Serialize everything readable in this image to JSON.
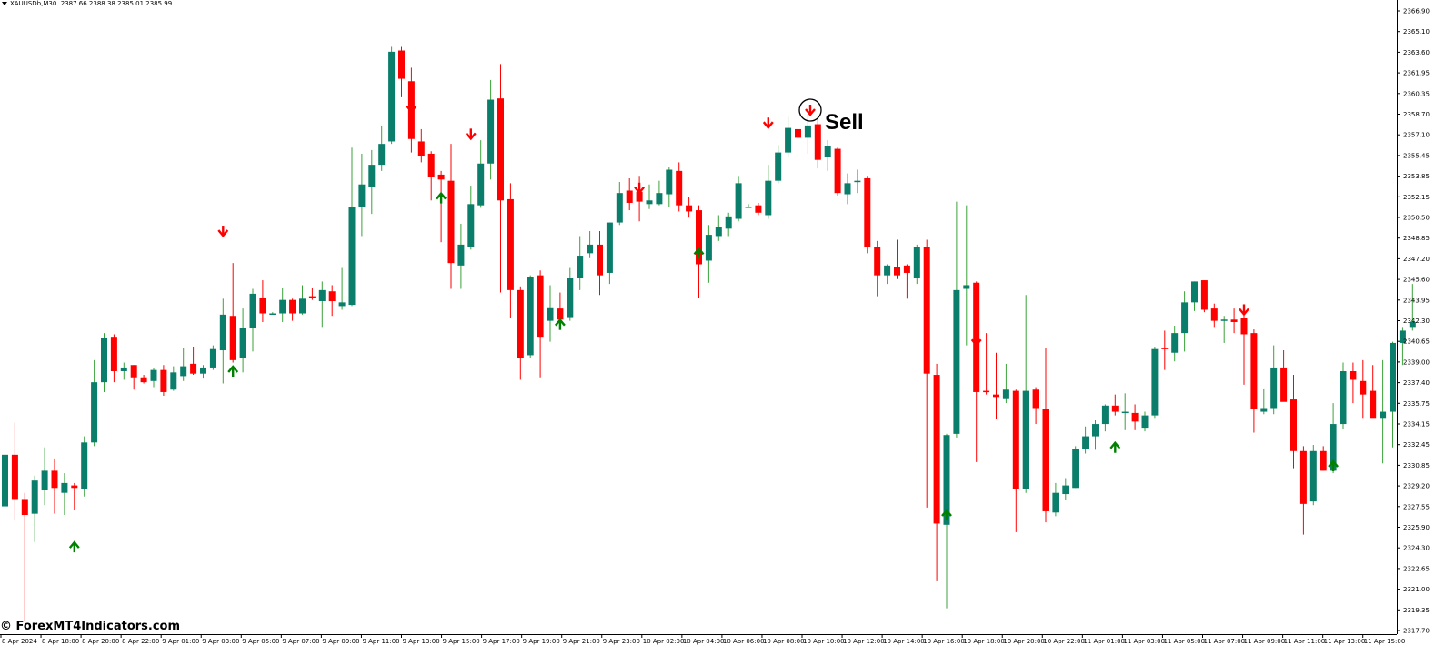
{
  "header": {
    "symbol_label": "XAUUSDb,M30",
    "ohlc_label": "2387.66 2388.38 2385.01 2385.99"
  },
  "watermark": "© ForexMT4Indicators.com",
  "annotation": {
    "label": "Sell"
  },
  "colors": {
    "bull": "#0b7d6b",
    "bear": "#ff0000",
    "bull_wick": "#3aa23a",
    "bear_wick": "#ff0000",
    "buy_arrow": "#008000",
    "sell_arrow": "#ff0000",
    "axis": "#000000"
  },
  "chart_data": {
    "type": "candlestick",
    "symbol": "XAUUSDb",
    "timeframe": "M30",
    "ylim": [
      2317.5,
      2368.0
    ],
    "y_ticks": [
      "2366.90",
      "2365.10",
      "2363.60",
      "2361.95",
      "2360.35",
      "2358.70",
      "2357.10",
      "2355.45",
      "2353.85",
      "2352.15",
      "2350.50",
      "2348.85",
      "2347.20",
      "2345.60",
      "2343.95",
      "2342.30",
      "2340.65",
      "2339.00",
      "2337.40",
      "2335.75",
      "2334.15",
      "2332.45",
      "2330.85",
      "2329.20",
      "2327.55",
      "2325.90",
      "2324.30",
      "2322.65",
      "2321.00",
      "2319.35",
      "2317.70"
    ],
    "x_ticks": [
      "8 Apr 2024",
      "8 Apr 18:00",
      "8 Apr 20:00",
      "8 Apr 22:00",
      "9 Apr 01:00",
      "9 Apr 03:00",
      "9 Apr 05:00",
      "9 Apr 07:00",
      "9 Apr 09:00",
      "9 Apr 11:00",
      "9 Apr 13:00",
      "9 Apr 15:00",
      "9 Apr 17:00",
      "9 Apr 19:00",
      "9 Apr 21:00",
      "9 Apr 23:00",
      "10 Apr 02:00",
      "10 Apr 04:00",
      "10 Apr 06:00",
      "10 Apr 08:00",
      "10 Apr 10:00",
      "10 Apr 12:00",
      "10 Apr 14:00",
      "10 Apr 16:00",
      "10 Apr 18:00",
      "10 Apr 20:00",
      "10 Apr 22:00",
      "11 Apr 01:00",
      "11 Apr 03:00",
      "11 Apr 05:00",
      "11 Apr 07:00",
      "11 Apr 09:00",
      "11 Apr 11:00",
      "11 Apr 13:00",
      "11 Apr 15:00"
    ],
    "candles": [
      {
        "o": 2327.9,
        "h": 2334.8,
        "l": 2326.1,
        "c": 2332.1
      },
      {
        "o": 2332.1,
        "h": 2334.7,
        "l": 2326.8,
        "c": 2328.5
      },
      {
        "o": 2328.5,
        "h": 2329.0,
        "l": 2318.6,
        "c": 2327.2
      },
      {
        "o": 2327.3,
        "h": 2330.4,
        "l": 2325.0,
        "c": 2330.0
      },
      {
        "o": 2329.2,
        "h": 2332.7,
        "l": 2328.0,
        "c": 2330.8
      },
      {
        "o": 2330.8,
        "h": 2331.8,
        "l": 2327.3,
        "c": 2329.4
      },
      {
        "o": 2329.0,
        "h": 2330.6,
        "l": 2327.2,
        "c": 2329.8
      },
      {
        "o": 2329.6,
        "h": 2329.8,
        "l": 2327.6,
        "c": 2329.4
      },
      {
        "o": 2329.3,
        "h": 2333.6,
        "l": 2328.7,
        "c": 2333.1
      },
      {
        "o": 2333.1,
        "h": 2339.8,
        "l": 2332.8,
        "c": 2338.0
      },
      {
        "o": 2338.0,
        "h": 2342.0,
        "l": 2337.2,
        "c": 2341.6
      },
      {
        "o": 2341.7,
        "h": 2341.9,
        "l": 2338.0,
        "c": 2338.9
      },
      {
        "o": 2338.9,
        "h": 2339.6,
        "l": 2338.2,
        "c": 2339.2
      },
      {
        "o": 2339.4,
        "h": 2339.4,
        "l": 2337.4,
        "c": 2338.4
      },
      {
        "o": 2338.4,
        "h": 2338.6,
        "l": 2337.9,
        "c": 2338.0
      },
      {
        "o": 2338.1,
        "h": 2339.2,
        "l": 2337.6,
        "c": 2339.0
      },
      {
        "o": 2339.0,
        "h": 2339.4,
        "l": 2336.9,
        "c": 2337.2
      },
      {
        "o": 2337.4,
        "h": 2339.3,
        "l": 2337.3,
        "c": 2338.8
      },
      {
        "o": 2338.5,
        "h": 2340.8,
        "l": 2338.1,
        "c": 2339.3
      },
      {
        "o": 2339.5,
        "h": 2340.9,
        "l": 2338.6,
        "c": 2338.7
      },
      {
        "o": 2338.7,
        "h": 2339.4,
        "l": 2338.3,
        "c": 2339.2
      },
      {
        "o": 2339.2,
        "h": 2341.0,
        "l": 2339.0,
        "c": 2340.7
      },
      {
        "o": 2340.6,
        "h": 2344.8,
        "l": 2337.9,
        "c": 2343.5
      },
      {
        "o": 2343.4,
        "h": 2347.7,
        "l": 2339.6,
        "c": 2339.8
      },
      {
        "o": 2340.0,
        "h": 2344.0,
        "l": 2338.8,
        "c": 2342.4
      },
      {
        "o": 2342.4,
        "h": 2345.6,
        "l": 2340.5,
        "c": 2345.2
      },
      {
        "o": 2344.9,
        "h": 2346.3,
        "l": 2342.9,
        "c": 2343.6
      },
      {
        "o": 2343.6,
        "h": 2343.7,
        "l": 2343.5,
        "c": 2343.6
      },
      {
        "o": 2343.6,
        "h": 2345.7,
        "l": 2342.9,
        "c": 2344.7
      },
      {
        "o": 2344.7,
        "h": 2344.8,
        "l": 2343.0,
        "c": 2343.6
      },
      {
        "o": 2343.6,
        "h": 2345.9,
        "l": 2343.5,
        "c": 2344.8
      },
      {
        "o": 2345.0,
        "h": 2345.7,
        "l": 2344.7,
        "c": 2344.9
      },
      {
        "o": 2344.6,
        "h": 2346.2,
        "l": 2342.5,
        "c": 2345.5
      },
      {
        "o": 2345.4,
        "h": 2345.9,
        "l": 2343.4,
        "c": 2344.6
      },
      {
        "o": 2344.2,
        "h": 2347.3,
        "l": 2343.9,
        "c": 2344.5
      },
      {
        "o": 2344.3,
        "h": 2357.1,
        "l": 2344.2,
        "c": 2352.3
      },
      {
        "o": 2352.3,
        "h": 2356.6,
        "l": 2349.9,
        "c": 2354.1
      },
      {
        "o": 2353.9,
        "h": 2356.9,
        "l": 2351.7,
        "c": 2355.7
      },
      {
        "o": 2355.7,
        "h": 2358.9,
        "l": 2355.2,
        "c": 2357.4
      },
      {
        "o": 2357.6,
        "h": 2365.3,
        "l": 2357.4,
        "c": 2364.9
      },
      {
        "o": 2365.0,
        "h": 2365.3,
        "l": 2361.2,
        "c": 2362.7
      },
      {
        "o": 2362.5,
        "h": 2363.6,
        "l": 2356.7,
        "c": 2357.8
      },
      {
        "o": 2357.6,
        "h": 2358.6,
        "l": 2355.9,
        "c": 2356.4
      },
      {
        "o": 2356.6,
        "h": 2356.8,
        "l": 2352.8,
        "c": 2354.7
      },
      {
        "o": 2354.9,
        "h": 2355.2,
        "l": 2349.4,
        "c": 2354.5
      },
      {
        "o": 2354.4,
        "h": 2357.4,
        "l": 2345.6,
        "c": 2347.7
      },
      {
        "o": 2347.5,
        "h": 2350.9,
        "l": 2345.6,
        "c": 2349.2
      },
      {
        "o": 2349.0,
        "h": 2354.0,
        "l": 2348.8,
        "c": 2352.5
      },
      {
        "o": 2352.4,
        "h": 2357.7,
        "l": 2352.2,
        "c": 2355.8
      },
      {
        "o": 2355.8,
        "h": 2362.6,
        "l": 2354.5,
        "c": 2361.0
      },
      {
        "o": 2361.1,
        "h": 2363.9,
        "l": 2345.3,
        "c": 2352.8
      },
      {
        "o": 2352.9,
        "h": 2354.2,
        "l": 2343.2,
        "c": 2345.5
      },
      {
        "o": 2345.5,
        "h": 2345.8,
        "l": 2338.2,
        "c": 2340.0
      },
      {
        "o": 2340.2,
        "h": 2346.7,
        "l": 2340.0,
        "c": 2346.6
      },
      {
        "o": 2346.7,
        "h": 2347.1,
        "l": 2338.4,
        "c": 2341.7
      },
      {
        "o": 2343.0,
        "h": 2345.9,
        "l": 2341.3,
        "c": 2344.1
      },
      {
        "o": 2344.0,
        "h": 2345.3,
        "l": 2342.4,
        "c": 2343.1
      },
      {
        "o": 2343.3,
        "h": 2347.3,
        "l": 2343.0,
        "c": 2346.5
      },
      {
        "o": 2346.5,
        "h": 2349.9,
        "l": 2345.5,
        "c": 2348.3
      },
      {
        "o": 2348.5,
        "h": 2350.3,
        "l": 2348.1,
        "c": 2349.2
      },
      {
        "o": 2349.2,
        "h": 2350.3,
        "l": 2345.1,
        "c": 2346.7
      },
      {
        "o": 2346.9,
        "h": 2351.0,
        "l": 2346.0,
        "c": 2351.0
      },
      {
        "o": 2351.0,
        "h": 2354.3,
        "l": 2350.8,
        "c": 2353.4
      },
      {
        "o": 2353.6,
        "h": 2354.6,
        "l": 2352.0,
        "c": 2352.6
      },
      {
        "o": 2353.5,
        "h": 2354.8,
        "l": 2351.1,
        "c": 2352.7
      },
      {
        "o": 2352.5,
        "h": 2354.1,
        "l": 2352.1,
        "c": 2352.8
      },
      {
        "o": 2352.5,
        "h": 2354.4,
        "l": 2352.4,
        "c": 2353.4
      },
      {
        "o": 2353.3,
        "h": 2355.5,
        "l": 2352.3,
        "c": 2355.3
      },
      {
        "o": 2355.2,
        "h": 2355.9,
        "l": 2351.9,
        "c": 2352.4
      },
      {
        "o": 2352.4,
        "h": 2353.1,
        "l": 2351.4,
        "c": 2351.9
      },
      {
        "o": 2352.0,
        "h": 2352.4,
        "l": 2344.9,
        "c": 2347.6
      },
      {
        "o": 2347.9,
        "h": 2350.8,
        "l": 2346.1,
        "c": 2350.0
      },
      {
        "o": 2349.9,
        "h": 2351.6,
        "l": 2349.5,
        "c": 2350.6
      },
      {
        "o": 2350.5,
        "h": 2351.8,
        "l": 2349.9,
        "c": 2351.5
      },
      {
        "o": 2351.3,
        "h": 2354.8,
        "l": 2351.1,
        "c": 2354.2
      },
      {
        "o": 2352.3,
        "h": 2352.5,
        "l": 2352.2,
        "c": 2352.3
      },
      {
        "o": 2352.4,
        "h": 2352.6,
        "l": 2351.6,
        "c": 2351.8
      },
      {
        "o": 2351.6,
        "h": 2355.7,
        "l": 2351.3,
        "c": 2354.4
      },
      {
        "o": 2354.4,
        "h": 2357.3,
        "l": 2354.2,
        "c": 2356.7
      },
      {
        "o": 2356.7,
        "h": 2359.6,
        "l": 2356.3,
        "c": 2358.7
      },
      {
        "o": 2358.6,
        "h": 2359.7,
        "l": 2357.0,
        "c": 2357.9
      },
      {
        "o": 2357.9,
        "h": 2359.8,
        "l": 2356.6,
        "c": 2358.9
      },
      {
        "o": 2359.0,
        "h": 2359.5,
        "l": 2355.4,
        "c": 2356.1
      },
      {
        "o": 2356.3,
        "h": 2357.7,
        "l": 2355.2,
        "c": 2357.2
      },
      {
        "o": 2357.0,
        "h": 2357.1,
        "l": 2353.2,
        "c": 2353.4
      },
      {
        "o": 2353.3,
        "h": 2355.0,
        "l": 2352.5,
        "c": 2354.2
      },
      {
        "o": 2354.3,
        "h": 2355.3,
        "l": 2353.4,
        "c": 2354.4
      },
      {
        "o": 2354.6,
        "h": 2354.8,
        "l": 2348.5,
        "c": 2349.0
      },
      {
        "o": 2349.0,
        "h": 2349.5,
        "l": 2345.0,
        "c": 2346.7
      },
      {
        "o": 2346.7,
        "h": 2347.6,
        "l": 2346.0,
        "c": 2347.5
      },
      {
        "o": 2347.4,
        "h": 2349.6,
        "l": 2346.4,
        "c": 2346.7
      },
      {
        "o": 2347.5,
        "h": 2347.6,
        "l": 2344.8,
        "c": 2346.9
      },
      {
        "o": 2346.5,
        "h": 2349.2,
        "l": 2346.0,
        "c": 2349.0
      },
      {
        "o": 2349.0,
        "h": 2349.6,
        "l": 2327.8,
        "c": 2338.7
      },
      {
        "o": 2338.6,
        "h": 2339.5,
        "l": 2321.8,
        "c": 2326.5
      },
      {
        "o": 2326.4,
        "h": 2333.8,
        "l": 2319.6,
        "c": 2333.7
      },
      {
        "o": 2333.8,
        "h": 2352.7,
        "l": 2333.5,
        "c": 2345.5
      },
      {
        "o": 2345.6,
        "h": 2352.4,
        "l": 2341.0,
        "c": 2345.9
      },
      {
        "o": 2346.1,
        "h": 2346.2,
        "l": 2331.5,
        "c": 2337.2
      },
      {
        "o": 2337.3,
        "h": 2342.0,
        "l": 2337.0,
        "c": 2337.2
      },
      {
        "o": 2337.0,
        "h": 2340.4,
        "l": 2335.0,
        "c": 2336.8
      },
      {
        "o": 2336.7,
        "h": 2339.5,
        "l": 2336.3,
        "c": 2337.4
      },
      {
        "o": 2337.3,
        "h": 2337.4,
        "l": 2325.8,
        "c": 2329.3
      },
      {
        "o": 2329.3,
        "h": 2345.1,
        "l": 2329.0,
        "c": 2337.3
      },
      {
        "o": 2337.4,
        "h": 2337.6,
        "l": 2334.6,
        "c": 2335.9
      },
      {
        "o": 2335.8,
        "h": 2340.8,
        "l": 2326.6,
        "c": 2327.5
      },
      {
        "o": 2327.4,
        "h": 2329.8,
        "l": 2327.1,
        "c": 2329.0
      },
      {
        "o": 2328.9,
        "h": 2330.2,
        "l": 2328.4,
        "c": 2329.6
      },
      {
        "o": 2329.4,
        "h": 2332.8,
        "l": 2329.4,
        "c": 2332.6
      },
      {
        "o": 2332.6,
        "h": 2334.4,
        "l": 2332.2,
        "c": 2333.6
      },
      {
        "o": 2333.6,
        "h": 2334.9,
        "l": 2332.5,
        "c": 2334.6
      },
      {
        "o": 2334.6,
        "h": 2336.2,
        "l": 2334.0,
        "c": 2336.1
      },
      {
        "o": 2336.1,
        "h": 2337.0,
        "l": 2335.3,
        "c": 2335.6
      },
      {
        "o": 2335.6,
        "h": 2337.1,
        "l": 2334.1,
        "c": 2335.6
      },
      {
        "o": 2335.5,
        "h": 2336.2,
        "l": 2334.1,
        "c": 2334.8
      },
      {
        "o": 2334.3,
        "h": 2335.6,
        "l": 2334.0,
        "c": 2335.3
      },
      {
        "o": 2335.3,
        "h": 2340.9,
        "l": 2335.1,
        "c": 2340.7
      },
      {
        "o": 2340.8,
        "h": 2342.2,
        "l": 2339.0,
        "c": 2340.7
      },
      {
        "o": 2340.4,
        "h": 2342.6,
        "l": 2339.7,
        "c": 2342.0
      },
      {
        "o": 2342.0,
        "h": 2345.4,
        "l": 2340.5,
        "c": 2344.5
      },
      {
        "o": 2344.5,
        "h": 2346.2,
        "l": 2343.8,
        "c": 2346.2
      },
      {
        "o": 2346.3,
        "h": 2346.3,
        "l": 2343.7,
        "c": 2343.9
      },
      {
        "o": 2344.0,
        "h": 2344.4,
        "l": 2342.5,
        "c": 2343.0
      },
      {
        "o": 2343.0,
        "h": 2343.4,
        "l": 2341.2,
        "c": 2343.1
      },
      {
        "o": 2343.1,
        "h": 2344.0,
        "l": 2342.0,
        "c": 2342.9
      },
      {
        "o": 2343.2,
        "h": 2344.2,
        "l": 2337.8,
        "c": 2341.9
      },
      {
        "o": 2342.0,
        "h": 2342.3,
        "l": 2333.9,
        "c": 2335.8
      },
      {
        "o": 2335.6,
        "h": 2337.5,
        "l": 2335.4,
        "c": 2335.9
      },
      {
        "o": 2335.9,
        "h": 2341.0,
        "l": 2335.4,
        "c": 2339.2
      },
      {
        "o": 2339.2,
        "h": 2340.6,
        "l": 2336.9,
        "c": 2336.4
      },
      {
        "o": 2336.6,
        "h": 2338.6,
        "l": 2331.0,
        "c": 2332.4
      },
      {
        "o": 2332.4,
        "h": 2332.8,
        "l": 2325.6,
        "c": 2328.1
      },
      {
        "o": 2328.3,
        "h": 2332.9,
        "l": 2328.0,
        "c": 2332.4
      },
      {
        "o": 2332.4,
        "h": 2332.8,
        "l": 2330.8,
        "c": 2330.8
      },
      {
        "o": 2330.8,
        "h": 2336.3,
        "l": 2330.6,
        "c": 2334.6
      },
      {
        "o": 2334.6,
        "h": 2339.6,
        "l": 2334.2,
        "c": 2338.9
      },
      {
        "o": 2338.9,
        "h": 2339.6,
        "l": 2336.3,
        "c": 2338.2
      },
      {
        "o": 2338.1,
        "h": 2339.8,
        "l": 2335.1,
        "c": 2337.0
      },
      {
        "o": 2337.3,
        "h": 2339.4,
        "l": 2335.3,
        "c": 2335.1
      },
      {
        "o": 2335.1,
        "h": 2339.8,
        "l": 2331.4,
        "c": 2335.6
      },
      {
        "o": 2335.6,
        "h": 2341.3,
        "l": 2332.7,
        "c": 2341.2
      },
      {
        "o": 2341.2,
        "h": 2342.5,
        "l": 2339.4,
        "c": 2342.2
      },
      {
        "o": 2342.5,
        "h": 2346.0,
        "l": 2342.2,
        "c": 2342.9
      }
    ],
    "buy_signals": [
      {
        "candle": 7,
        "price": 2324.6
      },
      {
        "candle": 23,
        "price": 2338.9
      },
      {
        "candle": 44,
        "price": 2353.0
      },
      {
        "candle": 56,
        "price": 2342.7
      },
      {
        "candle": 70,
        "price": 2348.5
      },
      {
        "candle": 95,
        "price": 2327.2
      },
      {
        "candle": 112,
        "price": 2332.7
      },
      {
        "candle": 134,
        "price": 2331.2
      }
    ],
    "sell_signals": [
      {
        "candle": 22,
        "price": 2350.3
      },
      {
        "candle": 41,
        "price": 2360.4
      },
      {
        "candle": 47,
        "price": 2358.2
      },
      {
        "candle": 64,
        "price": 2353.8
      },
      {
        "candle": 77,
        "price": 2359.1
      },
      {
        "candle": 98,
        "price": 2341.4
      },
      {
        "candle": 125,
        "price": 2343.9
      }
    ]
  }
}
